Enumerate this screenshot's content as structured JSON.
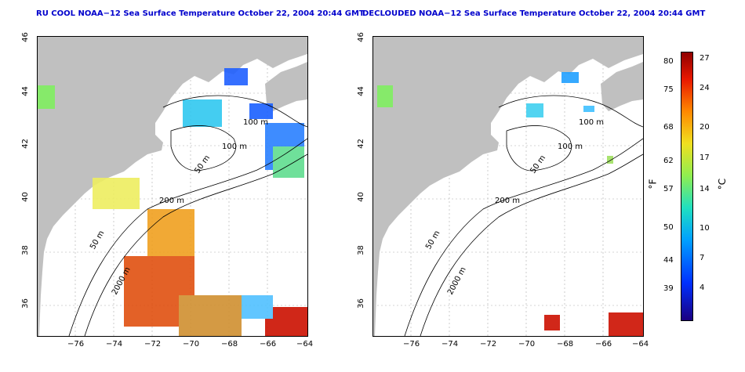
{
  "left_panel": {
    "title": "RU COOL NOAA−12 Sea Surface Temperature October 22, 2004 20:44 GMT",
    "contour_labels": [
      "100 m",
      "100 m",
      "50 m",
      "200 m",
      "50 m",
      "2000 m"
    ]
  },
  "right_panel": {
    "title": "DECLOUDED NOAA−12 Sea Surface Temperature October 22, 2004 20:44 GMT",
    "contour_labels": [
      "100 m",
      "100 m",
      "50 m",
      "200 m",
      "50 m",
      "2000 m"
    ]
  },
  "x_ticks": [
    "−76",
    "−74",
    "−72",
    "−70",
    "−68",
    "−66",
    "−64"
  ],
  "y_ticks": [
    "46",
    "44",
    "42",
    "40",
    "38",
    "36"
  ],
  "colorbar": {
    "fahrenheit_ticks": [
      "80",
      "75",
      "68",
      "62",
      "57",
      "50",
      "44",
      "39"
    ],
    "celsius_ticks": [
      "27",
      "24",
      "20",
      "17",
      "14",
      "10",
      "7",
      "4"
    ],
    "fahrenheit_unit": "°F",
    "celsius_unit": "°C",
    "range_c": [
      1,
      28
    ]
  }
}
